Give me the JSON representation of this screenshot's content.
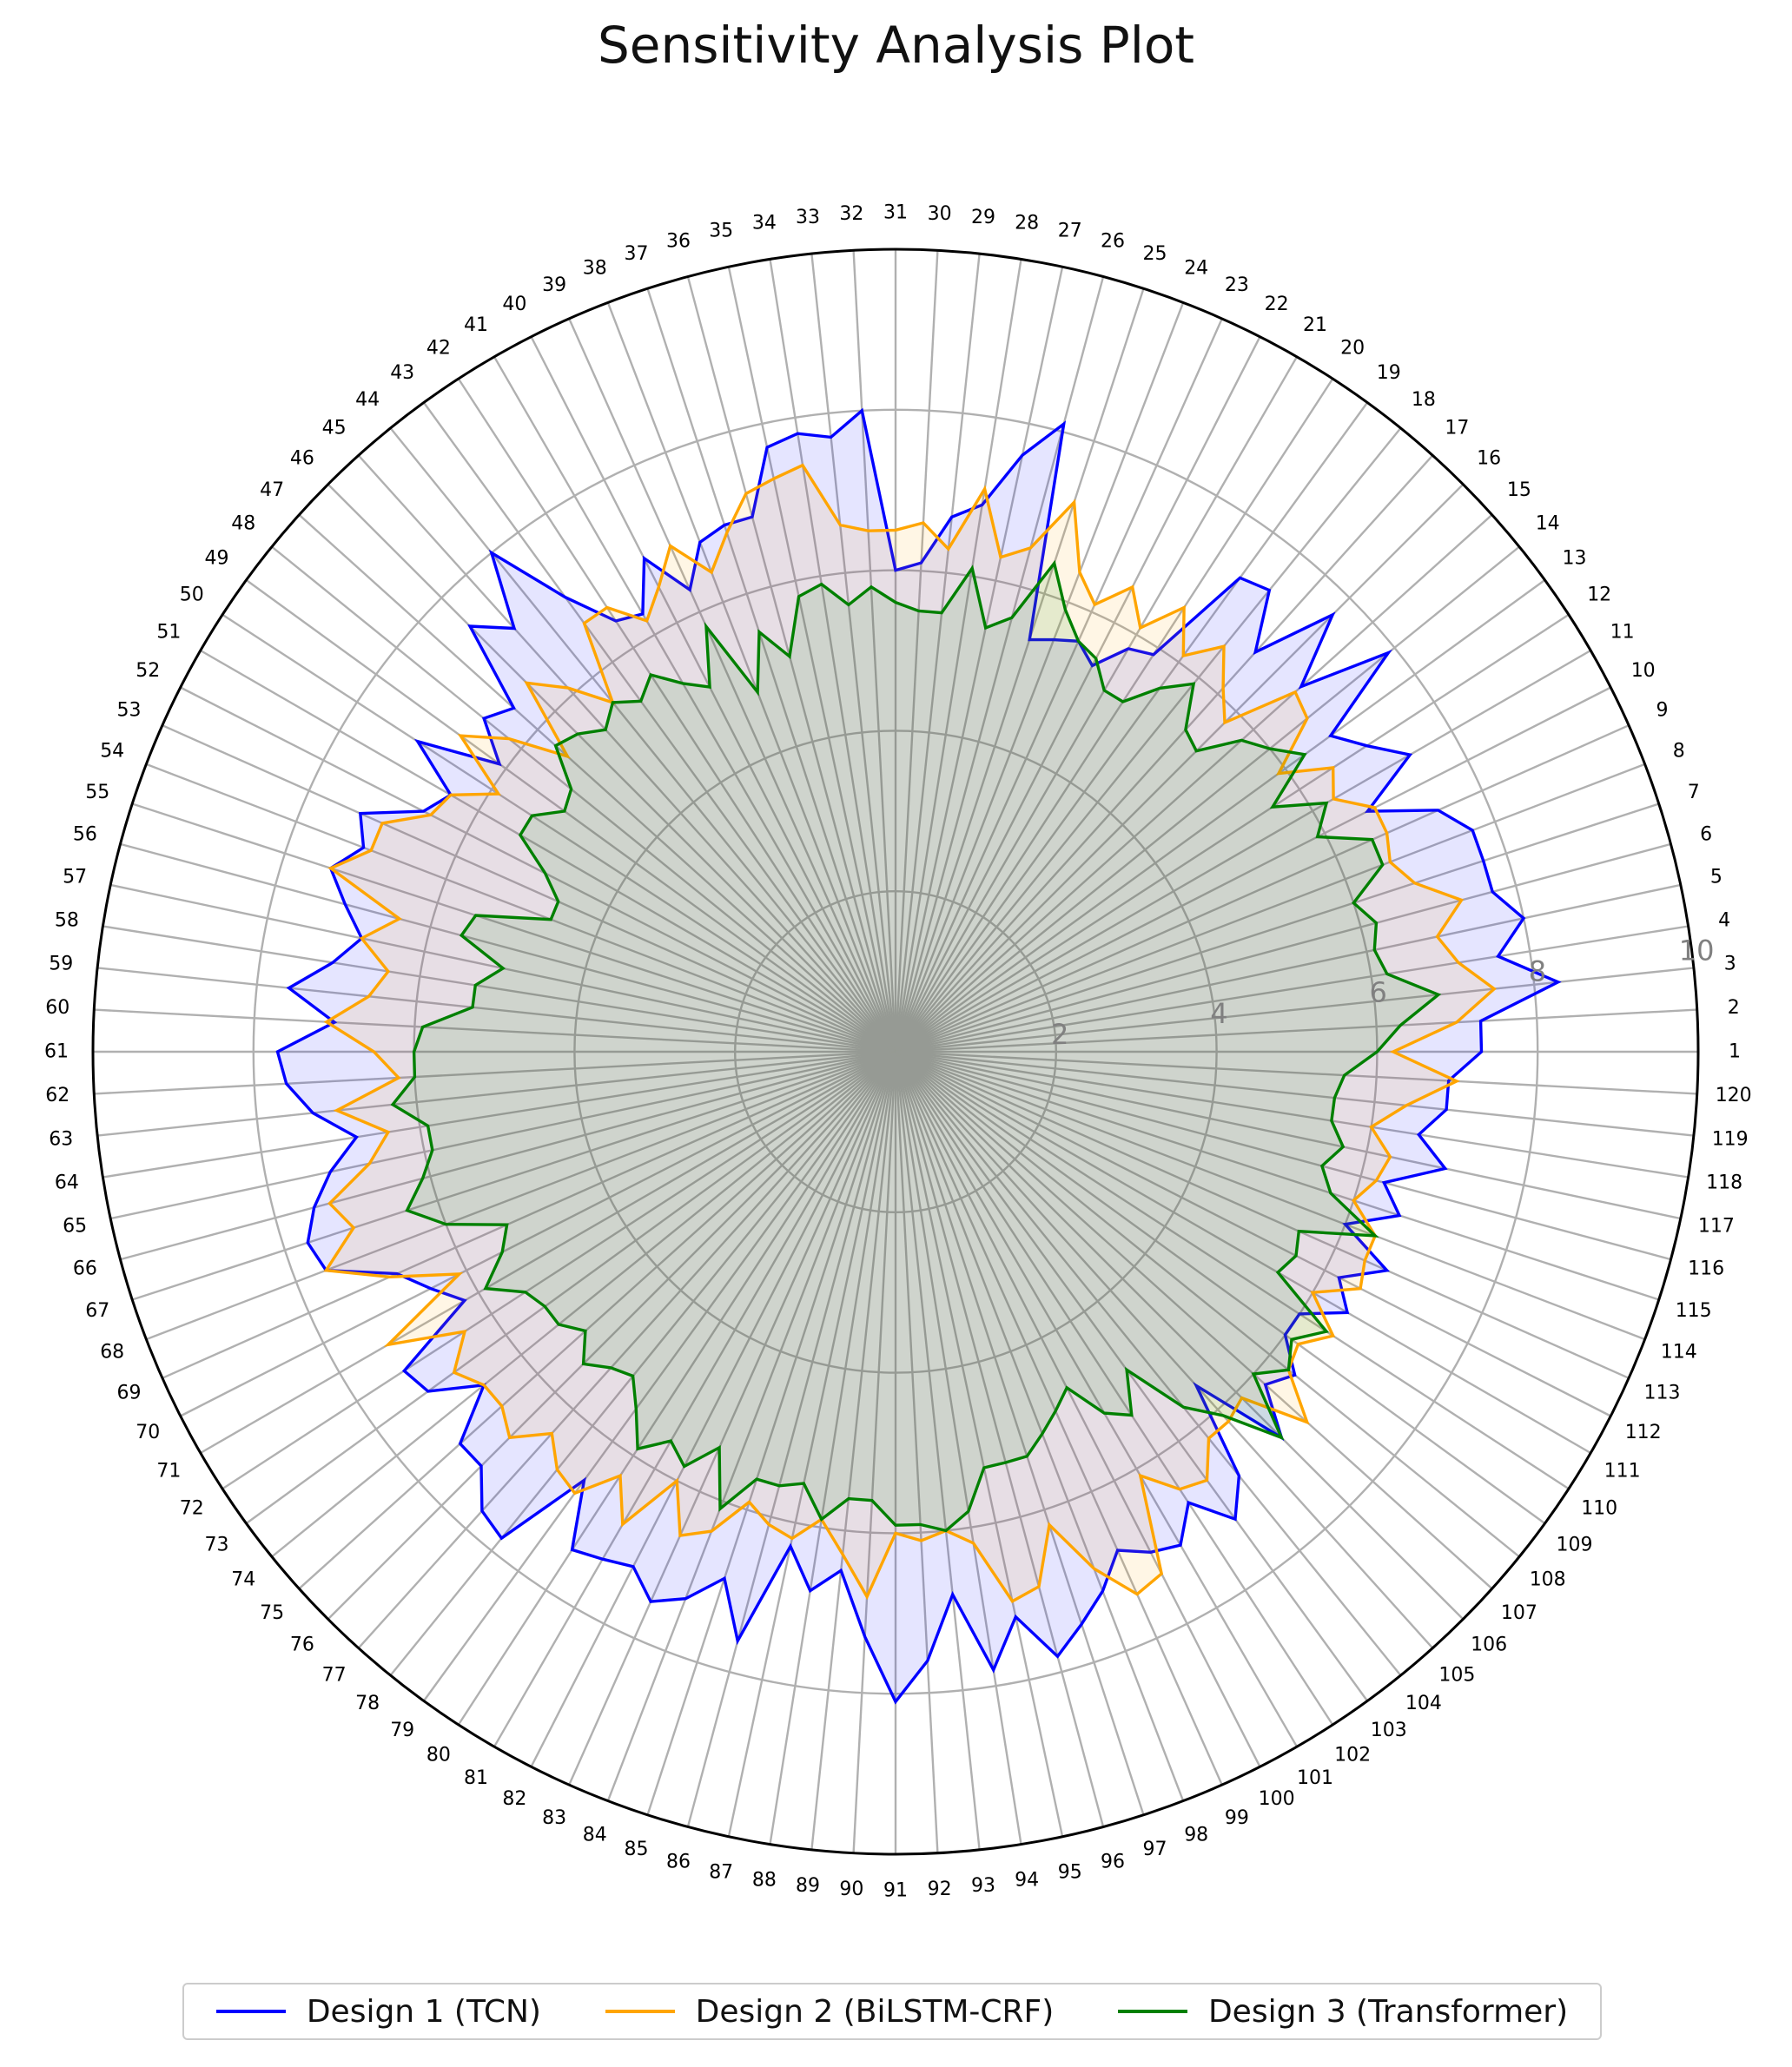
{
  "chart_data": {
    "type": "radar",
    "title": "Sensitivity Analysis Plot",
    "categories": [
      "1",
      "2",
      "3",
      "4",
      "5",
      "6",
      "7",
      "8",
      "9",
      "10",
      "11",
      "12",
      "13",
      "14",
      "15",
      "16",
      "17",
      "18",
      "19",
      "20",
      "21",
      "22",
      "23",
      "24",
      "25",
      "26",
      "27",
      "28",
      "29",
      "30",
      "31",
      "32",
      "33",
      "34",
      "35",
      "36",
      "37",
      "38",
      "39",
      "40",
      "41",
      "42",
      "43",
      "44",
      "45",
      "46",
      "47",
      "48",
      "49",
      "50",
      "51",
      "52",
      "53",
      "54",
      "55",
      "56",
      "57",
      "58",
      "59",
      "60",
      "61",
      "62",
      "63",
      "64",
      "65",
      "66",
      "67",
      "68",
      "69",
      "70",
      "71",
      "72",
      "73",
      "74",
      "75",
      "76",
      "77",
      "78",
      "79",
      "80",
      "81",
      "82",
      "83",
      "84",
      "85",
      "86",
      "87",
      "88",
      "89",
      "90",
      "91",
      "92",
      "93",
      "94",
      "95",
      "96",
      "97",
      "98",
      "99",
      "100",
      "101",
      "102",
      "103",
      "104",
      "105",
      "106",
      "107",
      "108",
      "109",
      "110",
      "111",
      "112",
      "113",
      "114",
      "115",
      "116",
      "117",
      "118",
      "119",
      "120"
    ],
    "rlim": [
      0,
      10
    ],
    "rticks": [
      2,
      4,
      6,
      8,
      10
    ],
    "grid": true,
    "legend_position": "bottom",
    "series": [
      {
        "name": "Design 1 (TCN)",
        "color": "#0000ff",
        "fill": "#0000ff",
        "values": [
          7.3,
          7.3,
          8.3,
          7.6,
          8.0,
          7.7,
          7.7,
          7.7,
          7.4,
          6.6,
          7.4,
          7.0,
          6.7,
          7.9,
          6.8,
          7.7,
          6.7,
          7.4,
          7.3,
          5.9,
          5.8,
          5.4,
          5.6,
          5.5,
          5.4,
          8.1,
          7.6,
          6.9,
          6.7,
          6.1,
          6.0,
          8.0,
          7.7,
          7.8,
          7.7,
          6.9,
          6.9,
          6.8,
          6.3,
          6.9,
          6.3,
          6.4,
          7.0,
          8.0,
          7.1,
          7.5,
          6.4,
          6.6,
          6.1,
          7.1,
          6.4,
          6.6,
          7.3,
          7.1,
          7.4,
          7.1,
          6.8,
          7.1,
          7.6,
          7.0,
          7.7,
          7.6,
          7.3,
          6.8,
          7.2,
          7.5,
          7.7,
          7.6,
          6.8,
          6.5,
          6.2,
          7.3,
          7.2,
          6.6,
          7.3,
          7.3,
          7.7,
          7.8,
          6.6,
          7.4,
          7.3,
          7.2,
          7.5,
          7.3,
          6.9,
          7.6,
          6.3,
          6.8,
          6.5,
          7.3,
          8.1,
          7.6,
          6.8,
          7.8,
          7.2,
          7.8,
          7.5,
          7.2,
          6.8,
          7.0,
          7.1,
          6.7,
          7.2,
          6.8,
          5.6,
          6.8,
          6.2,
          6.4,
          6.0,
          6.0,
          6.5,
          6.2,
          6.7,
          6.0,
          6.6,
          6.3,
          7.0,
          6.6,
          6.9,
          6.9
        ]
      },
      {
        "name": "Design 2 (BiLSTM-CRF)",
        "color": "#ffa500",
        "fill": "#ffa500",
        "values": [
          6.2,
          7.0,
          7.5,
          7.1,
          6.9,
          7.3,
          6.8,
          6.6,
          6.7,
          6.7,
          6.3,
          6.5,
          5.9,
          6.6,
          6.7,
          5.8,
          6.1,
          6.5,
          6.1,
          6.6,
          6.1,
          6.5,
          6.1,
          6.4,
          7.2,
          6.5,
          6.3,
          7.1,
          6.3,
          6.6,
          6.5,
          6.5,
          6.6,
          7.4,
          7.3,
          7.2,
          6.8,
          6.4,
          6.9,
          6.5,
          6.2,
          6.6,
          6.6,
          5.6,
          6.1,
          6.5,
          5.5,
          6.2,
          6.7,
          5.9,
          6.4,
          6.5,
          7.0,
          7.0,
          7.4,
          6.4,
          6.8,
          6.4,
          6.6,
          7.1,
          6.5,
          6.2,
          7.0,
          6.4,
          6.7,
          7.3,
          7.1,
          7.6,
          6.9,
          6.1,
          7.3,
          6.4,
          6.8,
          6.6,
          6.6,
          6.8,
          6.4,
          6.7,
          6.8,
          6.3,
          6.8,
          6.0,
          6.6,
          6.4,
          5.9,
          6.1,
          6.2,
          5.9,
          6.3,
          6.8,
          6.0,
          6.1,
          6.0,
          6.2,
          7.0,
          6.9,
          6.2,
          6.9,
          7.4,
          7.3,
          6.1,
          6.5,
          6.6,
          6.2,
          6.2,
          6.1,
          6.9,
          6.3,
          6.2,
          6.5,
          6.0,
          6.5,
          6.4,
          6.4,
          6.0,
          6.2,
          6.3,
          6.0,
          6.4,
          7.0
        ]
      },
      {
        "name": "Design 3 (Transformer)",
        "color": "#008000",
        "fill": "#008000",
        "values": [
          6.0,
          6.3,
          6.8,
          6.2,
          6.1,
          6.2,
          6.0,
          6.5,
          6.5,
          5.9,
          6.2,
          5.6,
          6.3,
          6.0,
          5.8,
          5.3,
          5.4,
          5.9,
          5.6,
          5.2,
          5.2,
          5.5,
          5.6,
          5.9,
          6.4,
          5.6,
          5.4,
          6.1,
          5.5,
          5.5,
          5.6,
          5.8,
          5.6,
          5.9,
          5.8,
          5.1,
          5.5,
          4.8,
          5.8,
          5.1,
          5.3,
          5.6,
          5.4,
          5.6,
          5.4,
          5.6,
          5.7,
          5.2,
          5.1,
          5.4,
          5.4,
          4.9,
          4.6,
          4.6,
          5.5,
          5.6,
          5.0,
          5.3,
          5.3,
          5.9,
          6.0,
          6.0,
          6.3,
          5.9,
          5.9,
          6.1,
          6.4,
          6.0,
          5.3,
          5.5,
          5.9,
          5.5,
          5.4,
          5.4,
          5.2,
          5.5,
          5.3,
          5.2,
          5.5,
          5.9,
          5.6,
          5.8,
          5.4,
          6.1,
          5.6,
          5.6,
          5.5,
          5.9,
          5.6,
          5.6,
          5.9,
          5.9,
          6.0,
          5.8,
          5.3,
          5.3,
          5.3,
          5.1,
          4.9,
          4.7,
          5.2,
          5.4,
          4.9,
          5.7,
          6.1,
          6.8,
          6.0,
          6.3,
          6.1,
          6.4,
          5.5,
          5.6,
          5.5,
          6.4,
          5.7,
          5.5,
          5.7,
          5.5,
          5.5,
          5.6
        ]
      }
    ]
  }
}
